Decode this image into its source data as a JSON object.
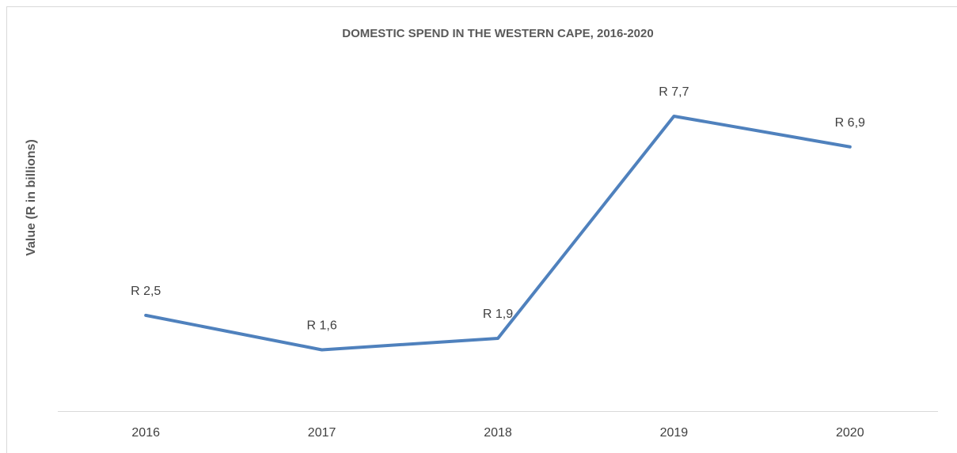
{
  "chart_data": {
    "type": "line",
    "title": "DOMESTIC SPEND IN THE WESTERN CAPE, 2016-2020",
    "y_label": "Value (R in billions)",
    "categories": [
      "2016",
      "2017",
      "2018",
      "2019",
      "2020"
    ],
    "series": [
      {
        "name": "Domestic spend",
        "color": "#4f81bd",
        "values": [
          2.5,
          1.6,
          1.9,
          7.7,
          6.9
        ],
        "value_labels": [
          "R 2,5",
          "R 1,6",
          "R 1,9",
          "R 7,7",
          "R 6,9"
        ]
      }
    ],
    "ylim": [
      0,
      9
    ],
    "grid": false
  }
}
